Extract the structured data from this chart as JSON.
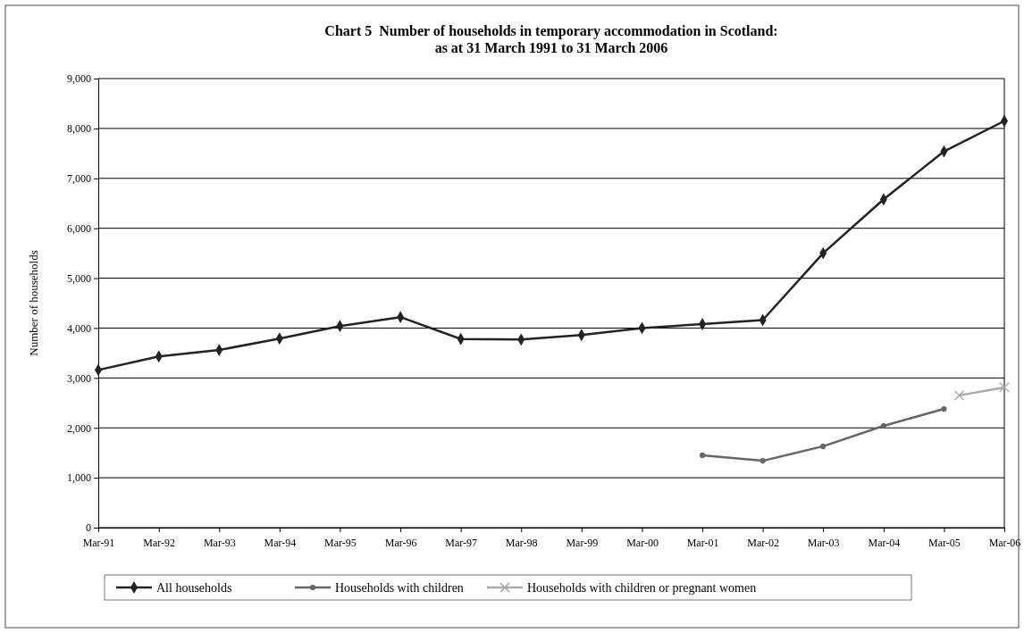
{
  "chart_data": {
    "type": "line",
    "title": "Chart 5  Number of households in temporary accommodation in Scotland:\nas at 31 March 1991 to 31 March 2006",
    "ylabel": "Number of households",
    "x": [
      "1991-03",
      "1992-03",
      "1993-03",
      "1994-03",
      "1995-03",
      "1996-03",
      "1997-03",
      "1998-03",
      "1999-03",
      "2000-03",
      "2001-03",
      "2002-03",
      "2003-03",
      "2004-03",
      "2005-03",
      "2006-03"
    ],
    "xlim": [
      "1991-03",
      "2006-03"
    ],
    "xticks": [
      {
        "value": "1991-03",
        "label": "Mar-91"
      },
      {
        "value": "1992-03",
        "label": "Mar-92"
      },
      {
        "value": "1993-03",
        "label": "Mar-93"
      },
      {
        "value": "1994-03",
        "label": "Mar-94"
      },
      {
        "value": "1995-03",
        "label": "Mar-95"
      },
      {
        "value": "1996-03",
        "label": "Mar-96"
      },
      {
        "value": "1997-03",
        "label": "Mar-97"
      },
      {
        "value": "1998-03",
        "label": "Mar-98"
      },
      {
        "value": "1999-03",
        "label": "Mar-99"
      },
      {
        "value": "2000-03",
        "label": "Mar-00"
      },
      {
        "value": "2001-03",
        "label": "Mar-01"
      },
      {
        "value": "2002-03",
        "label": "Mar-02"
      },
      {
        "value": "2003-03",
        "label": "Mar-03"
      },
      {
        "value": "2004-03",
        "label": "Mar-04"
      },
      {
        "value": "2005-03",
        "label": "Mar-05"
      },
      {
        "value": "2006-03",
        "label": "Mar-06"
      }
    ],
    "ylim": [
      0,
      9000
    ],
    "yticks": [
      {
        "value": 0,
        "label": "0"
      },
      {
        "value": 1000,
        "label": "1,000"
      },
      {
        "value": 2000,
        "label": "2,000"
      },
      {
        "value": 3000,
        "label": "3,000"
      },
      {
        "value": 4000,
        "label": "4,000"
      },
      {
        "value": 5000,
        "label": "5,000"
      },
      {
        "value": 6000,
        "label": "6,000"
      },
      {
        "value": 7000,
        "label": "7,000"
      },
      {
        "value": 8000,
        "label": "8,000"
      },
      {
        "value": 9000,
        "label": "9,000"
      }
    ],
    "grid": "y",
    "legend": "bottom",
    "series": [
      {
        "name": "All households",
        "color": "#222222",
        "marker": "diamond",
        "values": [
          3160,
          3430,
          3560,
          3790,
          4040,
          4220,
          3780,
          3770,
          3860,
          4000,
          4080,
          4160,
          5500,
          6580,
          7540,
          8150
        ]
      },
      {
        "name": "Households with children",
        "color": "#666666",
        "marker": "circle",
        "values": [
          null,
          null,
          null,
          null,
          null,
          null,
          null,
          null,
          null,
          null,
          1450,
          1340,
          1630,
          2040,
          2380,
          null
        ]
      },
      {
        "name": "Households with children or pregnant women",
        "color": "#aaaaaa",
        "marker": "cross",
        "x": [
          "2005-06",
          "2006-03"
        ],
        "values": [
          2650,
          2810
        ]
      }
    ]
  }
}
